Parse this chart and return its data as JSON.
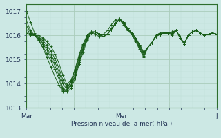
{
  "bg_color": "#cce8e4",
  "grid_color_major": "#aaccbb",
  "grid_color_minor": "#bbddd5",
  "line_color": "#1a5e1a",
  "ylabel": "Pression niveau de la mer( hPa )",
  "ylim": [
    1013.0,
    1017.3
  ],
  "yticks": [
    1013,
    1014,
    1015,
    1016,
    1017
  ],
  "xtick_labels": [
    "Mar",
    "",
    "Mer",
    "",
    "J"
  ],
  "xtick_pos": [
    0,
    24,
    48,
    72,
    96
  ],
  "series": [
    [
      1017.0,
      1016.55,
      1016.1,
      1015.8,
      1015.5,
      1015.1,
      1014.7,
      1014.3,
      1013.95,
      1013.65,
      1013.75,
      1014.1,
      1014.6,
      1015.2,
      1015.65,
      1016.0,
      1016.15,
      1016.05,
      1015.95,
      1016.05,
      1016.2,
      1016.45,
      1016.65,
      1016.7,
      1016.55,
      1016.3,
      1016.1,
      1015.9,
      1015.6,
      1015.3,
      1015.5,
      1015.7,
      1015.95,
      1016.05,
      1016.1,
      1016.1,
      1016.15,
      1016.2,
      1015.95,
      1015.65,
      1016.0,
      1016.15,
      1016.2,
      1016.1,
      1016.0,
      1016.05,
      1016.1,
      1016.05
    ],
    [
      1016.6,
      1016.2,
      1016.0,
      1015.8,
      1015.55,
      1015.25,
      1014.95,
      1014.6,
      1014.2,
      1013.7,
      1013.65,
      1013.8,
      1014.2,
      1014.8,
      1015.3,
      1015.8,
      1016.1,
      1016.15,
      1016.05,
      1015.95,
      1016.05,
      1016.25,
      1016.5,
      1016.7,
      1016.55,
      1016.3,
      1016.1,
      1015.9,
      1015.6,
      1015.3,
      1015.5,
      1015.7,
      1016.0,
      1016.1,
      1016.1,
      1016.1,
      1016.15,
      1016.2,
      1015.9,
      1015.65,
      1016.0,
      1016.15,
      1016.2,
      1016.1,
      1016.0,
      1016.05,
      1016.1,
      1016.05
    ],
    [
      1016.4,
      1016.15,
      1016.0,
      1015.85,
      1015.65,
      1015.4,
      1015.1,
      1014.75,
      1014.35,
      1013.8,
      1013.7,
      1013.9,
      1014.3,
      1014.9,
      1015.4,
      1015.85,
      1016.1,
      1016.15,
      1016.05,
      1015.95,
      1016.05,
      1016.25,
      1016.5,
      1016.65,
      1016.5,
      1016.3,
      1016.1,
      1015.9,
      1015.55,
      1015.25,
      1015.5,
      1015.7,
      1016.0,
      1016.1,
      1016.1,
      1016.1,
      1016.1,
      1016.2,
      1015.9,
      1015.65,
      1016.0,
      1016.15,
      1016.2,
      1016.1,
      1016.0,
      1016.05,
      1016.1,
      1016.05
    ],
    [
      1016.25,
      1016.1,
      1016.0,
      1015.9,
      1015.7,
      1015.5,
      1015.2,
      1014.9,
      1014.5,
      1014.0,
      1013.75,
      1013.95,
      1014.35,
      1014.95,
      1015.45,
      1015.9,
      1016.1,
      1016.15,
      1016.0,
      1015.95,
      1016.05,
      1016.25,
      1016.5,
      1016.65,
      1016.5,
      1016.25,
      1016.1,
      1015.85,
      1015.5,
      1015.2,
      1015.5,
      1015.7,
      1016.0,
      1016.05,
      1016.1,
      1016.1,
      1016.1,
      1016.2,
      1015.9,
      1015.65,
      1016.0,
      1016.15,
      1016.2,
      1016.1,
      1016.0,
      1016.05,
      1016.1,
      1016.05
    ],
    [
      1016.15,
      1016.05,
      1016.0,
      1015.95,
      1015.8,
      1015.6,
      1015.35,
      1015.05,
      1014.65,
      1014.15,
      1013.85,
      1014.05,
      1014.45,
      1015.05,
      1015.5,
      1015.95,
      1016.15,
      1016.15,
      1016.05,
      1015.95,
      1016.05,
      1016.25,
      1016.5,
      1016.65,
      1016.5,
      1016.25,
      1016.05,
      1015.8,
      1015.45,
      1015.15,
      1015.5,
      1015.7,
      1015.95,
      1016.05,
      1016.1,
      1016.1,
      1016.05,
      1016.2,
      1015.9,
      1015.65,
      1016.0,
      1016.15,
      1016.2,
      1016.1,
      1016.0,
      1016.05,
      1016.1,
      1016.05
    ],
    [
      1016.1,
      1016.0,
      1016.0,
      1016.0,
      1015.9,
      1015.75,
      1015.55,
      1015.25,
      1014.85,
      1014.35,
      1013.95,
      1014.15,
      1014.55,
      1015.1,
      1015.6,
      1016.0,
      1016.15,
      1016.15,
      1016.05,
      1015.95,
      1016.05,
      1016.3,
      1016.5,
      1016.65,
      1016.45,
      1016.2,
      1016.05,
      1015.75,
      1015.4,
      1015.1,
      1015.5,
      1015.7,
      1015.95,
      1016.05,
      1016.1,
      1016.1,
      1016.0,
      1016.2,
      1015.9,
      1015.65,
      1016.0,
      1016.15,
      1016.2,
      1016.1,
      1016.0,
      1016.05,
      1016.1,
      1016.05
    ]
  ]
}
